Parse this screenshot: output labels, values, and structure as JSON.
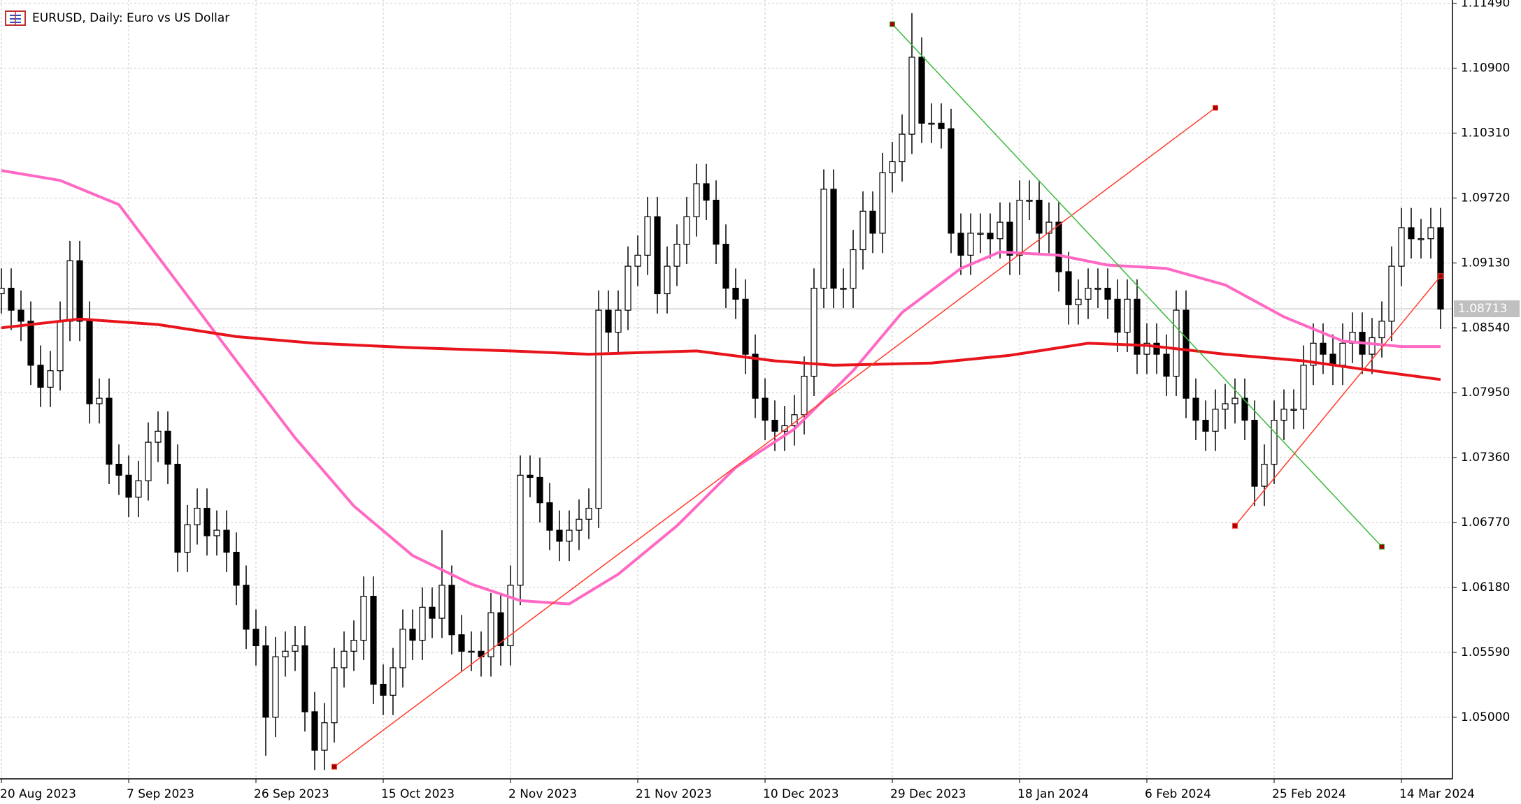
{
  "chart_data": {
    "type": "candlestick",
    "title": "EURUSD, Daily:  Euro vs US Dollar",
    "categories": [
      "20 Aug 2023",
      null,
      null,
      null,
      null,
      null,
      null,
      null,
      null,
      null,
      null,
      null,
      null,
      "7 Sep 2023",
      null,
      null,
      null,
      null,
      null,
      null,
      null,
      null,
      null,
      null,
      null,
      null,
      "26 Sep 2023",
      null,
      null,
      null,
      null,
      null,
      null,
      null,
      null,
      null,
      null,
      null,
      null,
      "15 Oct 2023",
      null,
      null,
      null,
      null,
      null,
      null,
      null,
      null,
      null,
      null,
      null,
      null,
      "2 Nov 2023",
      null,
      null,
      null,
      null,
      null,
      null,
      null,
      null,
      null,
      null,
      null,
      null,
      "21 Nov 2023",
      null,
      null,
      null,
      null,
      null,
      null,
      null,
      null,
      null,
      null,
      null,
      null,
      "10 Dec 2023",
      null,
      null,
      null,
      null,
      null,
      null,
      null,
      null,
      null,
      null,
      null,
      null,
      "29 Dec 2023",
      null,
      null,
      null,
      null,
      null,
      null,
      null,
      null,
      null,
      null,
      null,
      null,
      "18 Jan 2024",
      null,
      null,
      null,
      null,
      null,
      null,
      null,
      null,
      null,
      null,
      null,
      null,
      "6 Feb 2024",
      null,
      null,
      null,
      null,
      null,
      null,
      null,
      null,
      null,
      null,
      null,
      null,
      "25 Feb 2024",
      null,
      null,
      null,
      null,
      null,
      null,
      null,
      null,
      null,
      null,
      null,
      null,
      "14 Mar 2024",
      null,
      null,
      null,
      null
    ],
    "open": [
      1.0885,
      1.089,
      1.087,
      1.086,
      1.082,
      1.08,
      1.0815,
      1.086,
      1.0915,
      1.086,
      1.0785,
      1.079,
      1.073,
      1.072,
      1.07,
      1.0715,
      1.075,
      1.076,
      1.073,
      1.065,
      1.0675,
      1.069,
      1.0665,
      1.067,
      1.065,
      1.062,
      1.058,
      1.0565,
      1.05,
      1.0555,
      1.056,
      1.0565,
      1.0505,
      1.047,
      1.0495,
      1.0545,
      1.056,
      1.057,
      1.061,
      1.053,
      1.052,
      1.0545,
      1.058,
      1.057,
      1.06,
      1.059,
      1.062,
      1.0575,
      1.056,
      1.056,
      1.0555,
      1.0595,
      1.0565,
      1.062,
      1.072,
      1.0718,
      1.0695,
      1.067,
      1.066,
      1.067,
      1.068,
      1.069,
      1.087,
      1.085,
      1.087,
      1.091,
      1.092,
      1.0955,
      1.0885,
      1.091,
      1.093,
      1.0955,
      1.0985,
      1.097,
      1.093,
      1.089,
      1.088,
      1.083,
      1.079,
      1.077,
      1.076,
      1.0765,
      1.0775,
      1.081,
      1.089,
      1.098,
      1.089,
      1.089,
      1.0925,
      1.096,
      1.094,
      1.0995,
      1.1005,
      1.103,
      1.11,
      1.104,
      1.104,
      1.1035,
      1.094,
      1.092,
      1.094,
      1.094,
      1.0935,
      1.095,
      1.092,
      1.097,
      1.097,
      1.094,
      1.095,
      1.0905,
      1.0875,
      1.088,
      1.089,
      1.089,
      1.088,
      1.085,
      1.088,
      1.083,
      1.084,
      1.083,
      1.081,
      1.087,
      1.079,
      1.077,
      1.076,
      1.078,
      1.0785,
      1.079,
      1.077,
      1.071,
      1.073,
      1.077,
      1.078,
      1.078,
      1.082,
      1.084,
      1.083,
      1.082,
      1.084,
      1.085,
      1.083,
      1.0845,
      1.086,
      1.091,
      1.0945,
      1.0935,
      1.0935,
      1.0945
    ],
    "high": [
      1.0908,
      1.0908,
      1.0888,
      1.0878,
      1.0838,
      1.0833,
      1.0878,
      1.0933,
      1.0933,
      1.0878,
      1.0808,
      1.0808,
      1.0748,
      1.0738,
      1.0733,
      1.0768,
      1.0778,
      1.0778,
      1.0748,
      1.0693,
      1.0708,
      1.0708,
      1.0688,
      1.0688,
      1.0668,
      1.0638,
      1.0598,
      1.0583,
      1.0573,
      1.0578,
      1.0583,
      1.0583,
      1.0523,
      1.0513,
      1.0563,
      1.0578,
      1.0588,
      1.0628,
      1.0628,
      1.0548,
      1.0563,
      1.0598,
      1.0598,
      1.0618,
      1.0618,
      1.067,
      1.0638,
      1.0593,
      1.0578,
      1.0578,
      1.0613,
      1.0613,
      1.0638,
      1.0738,
      1.0738,
      1.0736,
      1.0713,
      1.0688,
      1.0688,
      1.0698,
      1.0708,
      1.0888,
      1.0888,
      1.0888,
      1.0928,
      1.0938,
      1.0973,
      1.0973,
      1.0928,
      1.0948,
      1.0973,
      1.1003,
      1.1003,
      1.0988,
      1.0948,
      1.0908,
      1.0898,
      1.0848,
      1.0808,
      1.0788,
      1.0783,
      1.0793,
      1.0828,
      1.0908,
      1.0998,
      1.0998,
      1.0908,
      1.0943,
      1.0978,
      1.0978,
      1.1013,
      1.1023,
      1.1048,
      1.114,
      1.1118,
      1.1058,
      1.1058,
      1.1053,
      1.0958,
      1.0958,
      1.0958,
      1.0958,
      1.0968,
      1.0968,
      1.0988,
      1.0988,
      1.0988,
      1.0968,
      1.0968,
      1.0923,
      1.0898,
      1.0908,
      1.0908,
      1.0908,
      1.0898,
      1.0898,
      1.0898,
      1.0858,
      1.0858,
      1.0848,
      1.0888,
      1.0888,
      1.0808,
      1.0788,
      1.0798,
      1.0803,
      1.0808,
      1.0808,
      1.0788,
      1.0748,
      1.0788,
      1.0798,
      1.0798,
      1.0838,
      1.0858,
      1.0858,
      1.0848,
      1.0858,
      1.0868,
      1.0868,
      1.0863,
      1.0878,
      1.0928,
      1.0963,
      1.0963,
      1.0953,
      1.0963,
      1.0963
    ],
    "low": [
      1.0867,
      1.0852,
      1.0842,
      1.0802,
      1.0782,
      1.0782,
      1.0797,
      1.0842,
      1.0842,
      1.0767,
      1.0767,
      1.0712,
      1.0702,
      1.0682,
      1.0682,
      1.0697,
      1.0732,
      1.0712,
      1.0632,
      1.0632,
      1.0657,
      1.0647,
      1.0647,
      1.0632,
      1.0602,
      1.0562,
      1.0547,
      1.0465,
      1.0482,
      1.0537,
      1.0542,
      1.0487,
      1.0452,
      1.0452,
      1.0477,
      1.0527,
      1.0542,
      1.0552,
      1.0512,
      1.0502,
      1.0502,
      1.0527,
      1.0552,
      1.0552,
      1.0572,
      1.0572,
      1.0557,
      1.0542,
      1.0542,
      1.0537,
      1.0537,
      1.0547,
      1.0547,
      1.0602,
      1.07,
      1.0677,
      1.0652,
      1.0642,
      1.0642,
      1.0652,
      1.0662,
      1.0672,
      1.0832,
      1.0832,
      1.0852,
      1.0892,
      1.0902,
      1.0867,
      1.0867,
      1.0892,
      1.0912,
      1.0937,
      1.0952,
      1.0912,
      1.0872,
      1.0862,
      1.0812,
      1.0772,
      1.0752,
      1.0742,
      1.0742,
      1.0747,
      1.0757,
      1.0792,
      1.0872,
      1.0872,
      1.0872,
      1.0872,
      1.0907,
      1.0922,
      1.0922,
      1.0977,
      1.0987,
      1.1012,
      1.1022,
      1.1022,
      1.1017,
      1.0922,
      1.0902,
      1.0902,
      1.0922,
      1.0917,
      1.0917,
      1.0902,
      1.0902,
      1.0952,
      1.0922,
      1.0922,
      1.0887,
      1.0857,
      1.0857,
      1.0862,
      1.0872,
      1.0862,
      1.0832,
      1.0832,
      1.0812,
      1.0812,
      1.0812,
      1.0792,
      1.0792,
      1.0772,
      1.0752,
      1.0742,
      1.0742,
      1.0762,
      1.0767,
      1.0752,
      1.0692,
      1.0692,
      1.0712,
      1.0752,
      1.0762,
      1.0762,
      1.0802,
      1.0812,
      1.0802,
      1.0802,
      1.0822,
      1.0812,
      1.0812,
      1.0827,
      1.0842,
      1.0892,
      1.0917,
      1.0917,
      1.0917,
      1.0853
    ],
    "close": [
      1.089,
      1.087,
      1.086,
      1.082,
      1.08,
      1.0815,
      1.086,
      1.0915,
      1.086,
      1.0785,
      1.079,
      1.073,
      1.072,
      1.07,
      1.0715,
      1.075,
      1.076,
      1.073,
      1.065,
      1.0675,
      1.069,
      1.0665,
      1.067,
      1.065,
      1.062,
      1.058,
      1.0565,
      1.05,
      1.0555,
      1.056,
      1.0565,
      1.0505,
      1.047,
      1.0495,
      1.0545,
      1.056,
      1.057,
      1.061,
      1.053,
      1.052,
      1.0545,
      1.058,
      1.057,
      1.06,
      1.059,
      1.062,
      1.0575,
      1.056,
      1.056,
      1.0555,
      1.0595,
      1.0565,
      1.062,
      1.072,
      1.0718,
      1.0695,
      1.067,
      1.066,
      1.067,
      1.068,
      1.069,
      1.087,
      1.085,
      1.087,
      1.091,
      1.092,
      1.0955,
      1.0885,
      1.091,
      1.093,
      1.0955,
      1.0985,
      1.097,
      1.093,
      1.089,
      1.088,
      1.083,
      1.079,
      1.077,
      1.076,
      1.0765,
      1.0775,
      1.081,
      1.089,
      1.098,
      1.089,
      1.089,
      1.0925,
      1.096,
      1.094,
      1.0995,
      1.1005,
      1.103,
      1.11,
      1.104,
      1.104,
      1.1035,
      1.094,
      1.092,
      1.094,
      1.094,
      1.0935,
      1.095,
      1.092,
      1.097,
      1.097,
      1.094,
      1.095,
      1.0905,
      1.0875,
      1.088,
      1.089,
      1.089,
      1.088,
      1.085,
      1.088,
      1.083,
      1.084,
      1.083,
      1.081,
      1.087,
      1.079,
      1.077,
      1.076,
      1.078,
      1.0785,
      1.079,
      1.077,
      1.071,
      1.073,
      1.077,
      1.078,
      1.078,
      1.082,
      1.084,
      1.083,
      1.082,
      1.084,
      1.085,
      1.083,
      1.0845,
      1.086,
      1.091,
      1.0945,
      1.0935,
      1.0935,
      1.0945,
      1.0871
    ],
    "up_color": "#ffffff",
    "down_color": "#000000",
    "lines": [
      {
        "color": "#ff69c4",
        "x": [
          0,
          6,
          12,
          18,
          24,
          30,
          36,
          42,
          48,
          53,
          58,
          63,
          69,
          75,
          81,
          87,
          92,
          98,
          102,
          108,
          113,
          119,
          125,
          131,
          137,
          143,
          147
        ],
        "values": [
          1.0997,
          1.0988,
          1.0966,
          1.0895,
          1.0824,
          1.0754,
          1.0692,
          1.0647,
          1.0621,
          1.0606,
          1.0603,
          1.063,
          1.0674,
          1.0727,
          1.0762,
          1.0815,
          1.0868,
          1.0908,
          1.0923,
          1.092,
          1.0911,
          1.0908,
          1.0893,
          1.0864,
          1.0842,
          1.0837,
          1.0837
        ]
      },
      {
        "color": "#e8141c",
        "x": [
          0,
          8,
          16,
          24,
          32,
          42,
          52,
          60,
          71,
          79,
          85,
          95,
          103,
          111,
          117,
          125,
          133,
          141,
          147
        ],
        "values": [
          1.0854,
          1.0862,
          1.0857,
          1.0846,
          1.084,
          1.0836,
          1.0833,
          1.083,
          1.0833,
          1.0824,
          1.082,
          1.0822,
          1.0829,
          1.084,
          1.0838,
          1.083,
          1.0824,
          1.0814,
          1.0807
        ]
      }
    ],
    "trendlines": [
      {
        "color": "#ff3a2a",
        "x": [
          34,
          124
        ],
        "values": [
          1.0455,
          1.1054
        ]
      },
      {
        "color": "#3cb83c",
        "x": [
          91,
          141
        ],
        "values": [
          1.113,
          1.0655
        ]
      },
      {
        "color": "#ff3a2a",
        "x": [
          126,
          147
        ],
        "values": [
          1.0674,
          1.0901
        ]
      }
    ],
    "price_line": 1.08713,
    "ylim": [
      1.0444,
      1.1152
    ],
    "yticks": [
      {
        "value": 1.05,
        "label": "1.05000"
      },
      {
        "value": 1.0559,
        "label": "1.05590"
      },
      {
        "value": 1.0618,
        "label": "1.06180"
      },
      {
        "value": 1.0677,
        "label": "1.06770"
      },
      {
        "value": 1.0736,
        "label": "1.07360"
      },
      {
        "value": 1.0795,
        "label": "1.07950"
      },
      {
        "value": 1.0854,
        "label": "1.08540"
      },
      {
        "value": 1.0913,
        "label": "1.09130"
      },
      {
        "value": 1.0972,
        "label": "1.09720"
      },
      {
        "value": 1.1031,
        "label": "1.10310"
      },
      {
        "value": 1.109,
        "label": "1.10900"
      },
      {
        "value": 1.1149,
        "label": "1.11490"
      }
    ],
    "grid": true
  }
}
